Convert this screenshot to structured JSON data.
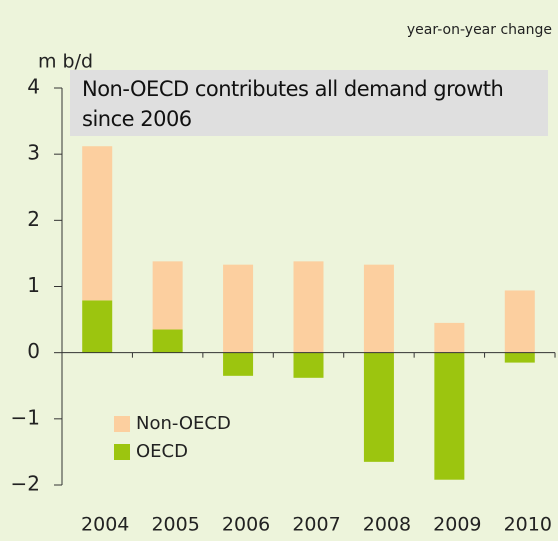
{
  "chart_data": {
    "type": "bar",
    "stacked": true,
    "title": "Non-OECD contributes all demand growth since 2006",
    "subtitle": "year-on-year change",
    "y_label": "m b/d",
    "categories": [
      "2004",
      "2005",
      "2006",
      "2007",
      "2008",
      "2009",
      "2010"
    ],
    "series": [
      {
        "name": "Non-OECD",
        "color": "#fccf9f",
        "values": [
          2.33,
          1.03,
          1.33,
          1.38,
          1.33,
          0.45,
          0.94
        ]
      },
      {
        "name": "OECD",
        "color": "#9cc50f",
        "values": [
          0.79,
          0.35,
          -0.35,
          -0.38,
          -1.65,
          -1.92,
          -0.15
        ]
      }
    ],
    "ylim": [
      -2,
      4
    ],
    "yticks": [
      {
        "value": -2,
        "label": "−2"
      },
      {
        "value": -1,
        "label": "−1"
      },
      0,
      1,
      2,
      3,
      4
    ],
    "legend": "bottom-left"
  }
}
